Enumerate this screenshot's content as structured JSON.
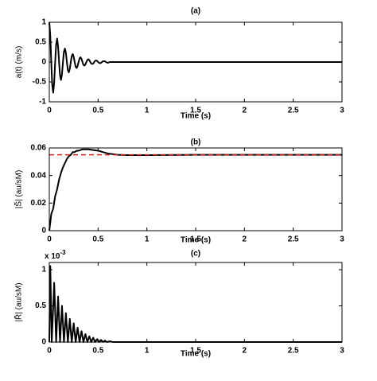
{
  "chart_data": [
    {
      "type": "line",
      "title": "(a)",
      "xlabel": "Time (s)",
      "ylabel": "a(t) (m/s)",
      "xlim": [
        0,
        3
      ],
      "xticks": [
        0,
        0.5,
        1,
        1.5,
        2,
        2.5,
        3
      ],
      "ylim": [
        -1,
        1
      ],
      "yticks": [
        -1,
        -0.5,
        0,
        0.5,
        1
      ],
      "series": [
        {
          "color": "#000000",
          "x": [
            0,
            0.01,
            0.02,
            0.03,
            0.04,
            0.05,
            0.06,
            0.07,
            0.08,
            0.09,
            0.1,
            0.11,
            0.12,
            0.13,
            0.14,
            0.15,
            0.16,
            0.17,
            0.18,
            0.19,
            0.2,
            0.21,
            0.22,
            0.23,
            0.24,
            0.25,
            0.26,
            0.27,
            0.28,
            0.29,
            0.3,
            0.31,
            0.32,
            0.33,
            0.34,
            0.35,
            0.36,
            0.37,
            0.38,
            0.39,
            0.4,
            0.41,
            0.42,
            0.43,
            0.44,
            0.45,
            0.46,
            0.47,
            0.48,
            0.49,
            0.5,
            0.51,
            0.52,
            0.53,
            0.54,
            0.55,
            0.56,
            0.57,
            0.58,
            0.59,
            0.6,
            0.61,
            0.62,
            3
          ],
          "values": [
            1,
            0.66,
            0,
            -0.58,
            -0.77,
            -0.51,
            0,
            0.44,
            0.59,
            0.39,
            0,
            -0.34,
            -0.45,
            -0.3,
            0,
            0.26,
            0.34,
            0.23,
            0,
            -0.2,
            -0.26,
            -0.17,
            0,
            0.15,
            0.2,
            0.13,
            0,
            -0.12,
            -0.15,
            -0.1,
            0,
            0.09,
            0.12,
            0.08,
            0,
            -0.07,
            -0.09,
            -0.06,
            0,
            0.05,
            0.07,
            0.05,
            0,
            -0.04,
            -0.05,
            -0.04,
            0,
            0.03,
            0.04,
            0.03,
            0,
            -0.02,
            -0.03,
            -0.02,
            0,
            0.02,
            0.02,
            0.02,
            0,
            -0.01,
            -0.02,
            -0.01,
            0,
            0
          ]
        }
      ]
    },
    {
      "type": "line",
      "title": "(b)",
      "xlabel": "Time (s)",
      "ylabel": "|S̃| (au/sM)",
      "xlim": [
        0,
        3
      ],
      "xticks": [
        0,
        0.5,
        1,
        1.5,
        2,
        2.5,
        3
      ],
      "ylim": [
        0,
        0.06
      ],
      "yticks": [
        0,
        0.02,
        0.04,
        0.06
      ],
      "reference": {
        "value": 0.055,
        "color": "#cc2222"
      },
      "series": [
        {
          "color": "#000000",
          "x": [
            0,
            0.02,
            0.04,
            0.06,
            0.08,
            0.1,
            0.12,
            0.14,
            0.16,
            0.18,
            0.2,
            0.22,
            0.24,
            0.26,
            0.28,
            0.3,
            0.34,
            0.4,
            0.5,
            0.6,
            0.7,
            0.8,
            1,
            1.5,
            3
          ],
          "values": [
            0,
            0.012,
            0.016,
            0.025,
            0.03,
            0.037,
            0.042,
            0.046,
            0.049,
            0.052,
            0.054,
            0.055,
            0.057,
            0.057,
            0.058,
            0.058,
            0.059,
            0.059,
            0.058,
            0.056,
            0.055,
            0.0548,
            0.0548,
            0.055,
            0.055
          ]
        }
      ]
    },
    {
      "type": "line",
      "title": "(c)",
      "xlabel": "Time (s)",
      "ylabel": "|R̃| (au/sM)",
      "scale_label": {
        "base": "x 10",
        "exponent": "-3"
      },
      "xlim": [
        0,
        3
      ],
      "xticks": [
        0,
        0.5,
        1,
        1.5,
        2,
        2.5,
        3
      ],
      "ylim": [
        0,
        1.1
      ],
      "yticks": [
        0,
        0.5,
        1
      ],
      "series": [
        {
          "color": "#000000",
          "x": [
            0,
            0.01,
            0.025,
            0.05,
            0.07,
            0.09,
            0.11,
            0.13,
            0.15,
            0.17,
            0.19,
            0.21,
            0.23,
            0.25,
            0.27,
            0.29,
            0.31,
            0.33,
            0.35,
            0.37,
            0.39,
            0.41,
            0.43,
            0.45,
            0.47,
            0.49,
            0.51,
            0.53,
            0.55,
            0.57,
            0.59,
            0.62,
            0.65,
            3
          ],
          "values": [
            0,
            1.05,
            0,
            0.82,
            0,
            0.63,
            0,
            0.5,
            0,
            0.4,
            0,
            0.32,
            0,
            0.26,
            0,
            0.2,
            0,
            0.15,
            0,
            0.11,
            0,
            0.08,
            0,
            0.06,
            0,
            0.04,
            0,
            0.03,
            0,
            0.02,
            0,
            0.01,
            0,
            0
          ]
        }
      ]
    }
  ]
}
